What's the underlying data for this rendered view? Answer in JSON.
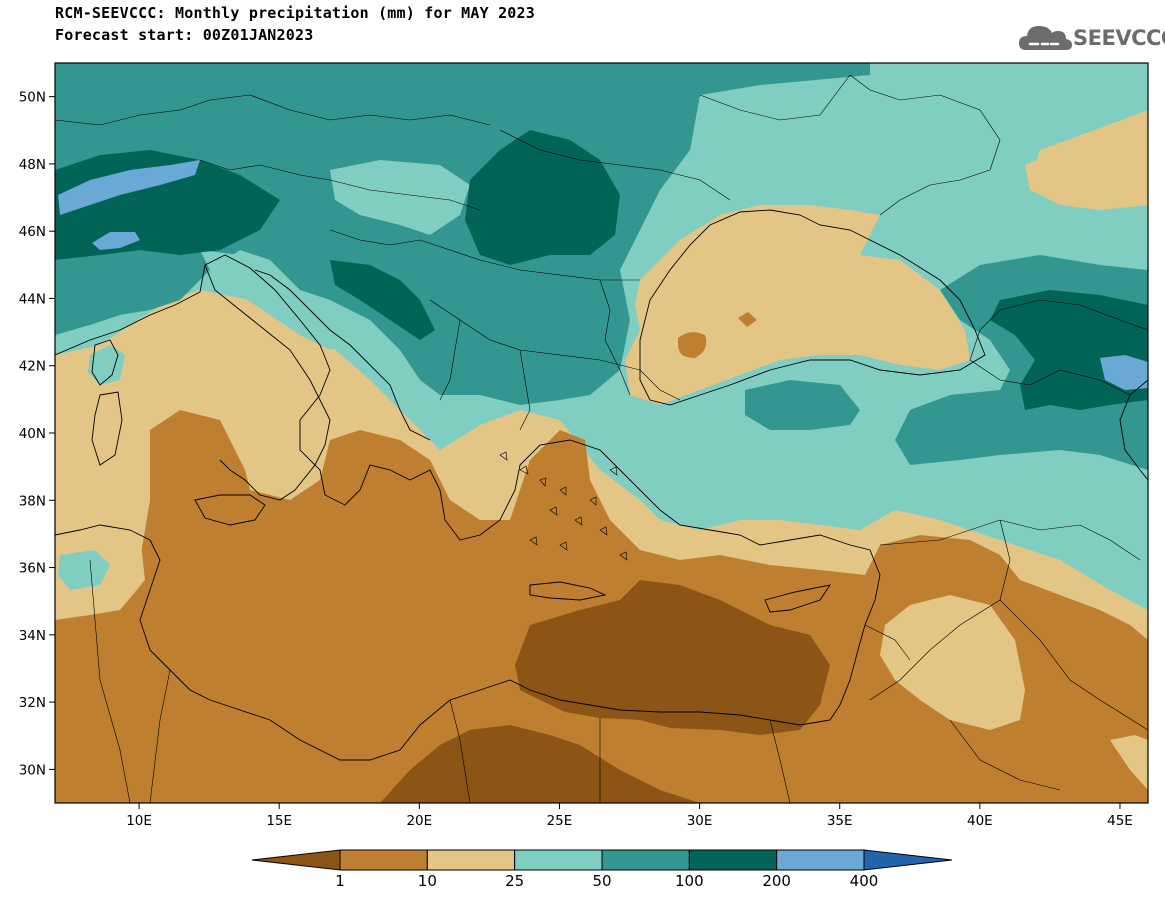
{
  "header": {
    "title_line1": "RCM-SEEVCCC: Monthly precipitation (mm) for MAY 2023",
    "title_line2": "Forecast start: 00Z01JAN2023"
  },
  "logo": {
    "text": "SEEVCCC",
    "icon": "cloud-icon",
    "color": "#6c6c6c"
  },
  "map": {
    "lon_range": [
      7,
      46
    ],
    "lat_range": [
      29,
      51
    ],
    "lat_ticks": [
      "50N",
      "48N",
      "46N",
      "44N",
      "42N",
      "40N",
      "38N",
      "36N",
      "34N",
      "32N",
      "30N"
    ],
    "lon_ticks": [
      "10E",
      "15E",
      "20E",
      "25E",
      "30E",
      "35E",
      "40E",
      "45E"
    ]
  },
  "colorbar": {
    "labels": [
      "1",
      "10",
      "25",
      "50",
      "100",
      "200",
      "400"
    ],
    "colors": [
      "#8c5516",
      "#be7f31",
      "#e3c586",
      "#80cec1",
      "#349690",
      "#016456",
      "#6aa8d6",
      "#2166ac"
    ],
    "extend": "both"
  }
}
